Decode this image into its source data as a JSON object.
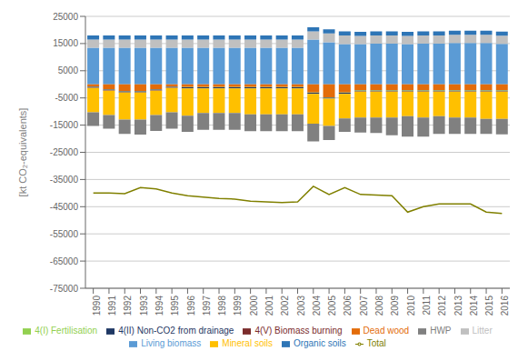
{
  "chart_data": {
    "type": "bar",
    "stacked": true,
    "ylabel": "[kt CO₂-equivalents]",
    "categories": [
      1990,
      1991,
      1992,
      1993,
      1994,
      1995,
      1996,
      1997,
      1998,
      1999,
      2000,
      2001,
      2002,
      2003,
      2004,
      2005,
      2006,
      2007,
      2008,
      2009,
      2010,
      2011,
      2012,
      2013,
      2014,
      2015,
      2016
    ],
    "series": [
      {
        "name": "Living biomass",
        "color": "#5B9BD5",
        "type": "bar",
        "values": [
          13500,
          13500,
          13500,
          13500,
          13500,
          13500,
          13500,
          13500,
          13500,
          13500,
          13500,
          13500,
          13500,
          13500,
          16500,
          15500,
          14800,
          14800,
          15000,
          15000,
          14800,
          15000,
          15000,
          15200,
          15200,
          15200,
          14900
        ]
      },
      {
        "name": "Litter",
        "color": "#C0C0C0",
        "type": "bar",
        "values": [
          3000,
          3000,
          3000,
          3000,
          3000,
          3000,
          3000,
          3000,
          3000,
          3000,
          3000,
          3000,
          3000,
          3000,
          3000,
          3200,
          3200,
          3000,
          3000,
          3000,
          3000,
          3000,
          3000,
          3000,
          3000,
          3000,
          3000
        ]
      },
      {
        "name": "Organic soils",
        "color": "#2E75B6",
        "type": "bar",
        "values": [
          1500,
          1500,
          1500,
          1500,
          1500,
          1500,
          1500,
          1500,
          1500,
          1500,
          1500,
          1500,
          1500,
          1500,
          1500,
          1500,
          1500,
          1500,
          1500,
          1500,
          1500,
          1500,
          1500,
          1500,
          1500,
          1500,
          1500
        ]
      },
      {
        "name": "Dead wood",
        "color": "#E36C09",
        "type": "bar",
        "values": [
          -800,
          -1800,
          -2500,
          -2500,
          -1800,
          -800,
          -1000,
          -1000,
          -1000,
          -1000,
          -1000,
          -1000,
          -1000,
          -1000,
          -3000,
          -4800,
          -3000,
          -2200,
          -2200,
          -2200,
          -2200,
          -2200,
          -2200,
          -2200,
          -2200,
          -2200,
          -2200
        ]
      },
      {
        "name": "4(I) Fertilisation",
        "color": "#92D050",
        "type": "bar",
        "values": [
          -100,
          -100,
          -100,
          -100,
          -100,
          -100,
          -100,
          -100,
          -100,
          -100,
          -100,
          -100,
          -100,
          -100,
          -100,
          -100,
          -100,
          -100,
          -100,
          -100,
          -100,
          -100,
          -100,
          -100,
          -100,
          -100,
          -100
        ]
      },
      {
        "name": "4(II) Non-CO2 from drainage",
        "color": "#1F3864",
        "type": "bar",
        "values": [
          -300,
          -300,
          -300,
          -300,
          -300,
          -300,
          -300,
          -300,
          -300,
          -300,
          -300,
          -300,
          -300,
          -300,
          -300,
          -300,
          -300,
          -300,
          -300,
          -300,
          -300,
          -300,
          -300,
          -300,
          -300,
          -300,
          -300
        ]
      },
      {
        "name": "4(V) Biomass burning",
        "color": "#7B2C2C",
        "type": "bar",
        "values": [
          -100,
          -100,
          -100,
          -100,
          -100,
          -100,
          -100,
          -100,
          -100,
          -100,
          -100,
          -100,
          -100,
          -100,
          -100,
          -100,
          -100,
          -100,
          -100,
          -100,
          -100,
          -100,
          -100,
          -100,
          -100,
          -100,
          -100
        ]
      },
      {
        "name": "Mineral soils",
        "color": "#FFC000",
        "type": "bar",
        "values": [
          -9000,
          -9000,
          -10000,
          -10000,
          -9000,
          -9000,
          -10000,
          -9000,
          -9000,
          -9000,
          -9500,
          -9500,
          -9500,
          -9500,
          -11000,
          -10000,
          -9000,
          -9500,
          -9500,
          -9500,
          -9000,
          -9500,
          -9000,
          -9500,
          -9500,
          -10000,
          -10000
        ]
      },
      {
        "name": "HWP",
        "color": "#808080",
        "type": "bar",
        "values": [
          -5000,
          -5000,
          -5200,
          -5500,
          -5800,
          -6000,
          -6000,
          -6200,
          -6200,
          -6200,
          -6200,
          -6200,
          -6200,
          -6200,
          -6500,
          -5200,
          -5000,
          -5500,
          -5700,
          -6500,
          -7500,
          -7000,
          -6500,
          -6000,
          -6000,
          -5500,
          -5700
        ]
      },
      {
        "name": "Total",
        "color": "#808000",
        "type": "line",
        "values": [
          -40000,
          -40000,
          -40200,
          -38000,
          -38500,
          -40000,
          -41000,
          -41500,
          -42000,
          -42200,
          -43000,
          -43200,
          -43500,
          -43200,
          -37500,
          -40500,
          -38000,
          -40500,
          -40700,
          -41000,
          -47000,
          -45000,
          -44000,
          -44000,
          -44000,
          -47000,
          -47500
        ]
      }
    ],
    "ylim": [
      -75000,
      25000
    ],
    "yticks": [
      -75000,
      -65000,
      -55000,
      -45000,
      -35000,
      -25000,
      -15000,
      -5000,
      5000,
      15000,
      25000
    ],
    "grid": true,
    "legend": "bottom"
  }
}
